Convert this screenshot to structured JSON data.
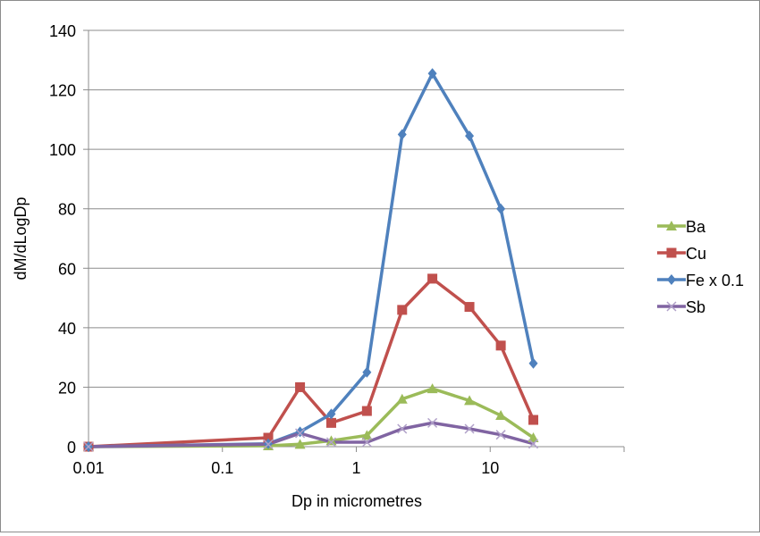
{
  "chart_data": {
    "type": "line",
    "title": "",
    "xlabel": "Dp in micrometres",
    "ylabel": "dM/dLogDp",
    "x_scale": "log",
    "xlim": [
      0.01,
      100
    ],
    "ylim": [
      0,
      140
    ],
    "x_ticks": [
      0.01,
      0.1,
      1,
      10
    ],
    "x_tick_labels": [
      "0.01",
      "0.1",
      "1",
      "10"
    ],
    "y_ticks": [
      0,
      20,
      40,
      60,
      80,
      100,
      120,
      140
    ],
    "y_tick_labels": [
      "0",
      "20",
      "40",
      "60",
      "80",
      "100",
      "120",
      "140"
    ],
    "grid": "horizontal",
    "legend_position": "right",
    "x": [
      0.01,
      0.22,
      0.38,
      0.65,
      1.2,
      2.2,
      3.7,
      7,
      12,
      21
    ],
    "series": [
      {
        "name": "Ba",
        "color": "#9bbb59",
        "marker": "triangle",
        "values": [
          0,
          0.3,
          0.8,
          2,
          3.8,
          16,
          19.5,
          15.5,
          10.5,
          3
        ]
      },
      {
        "name": "Cu",
        "color": "#c0504d",
        "marker": "square",
        "values": [
          0,
          3,
          20,
          8,
          12,
          46,
          56.5,
          47,
          34,
          9
        ]
      },
      {
        "name": "Fe x 0.1",
        "color": "#4f81bd",
        "marker": "diamond",
        "values": [
          0,
          1,
          5,
          11,
          25,
          105,
          125.5,
          104.5,
          80,
          28
        ]
      },
      {
        "name": "Sb",
        "color": "#8064a2",
        "marker": "x",
        "values": [
          0,
          0.8,
          4.5,
          1.5,
          1.5,
          6,
          8,
          6,
          4,
          1
        ]
      }
    ]
  }
}
